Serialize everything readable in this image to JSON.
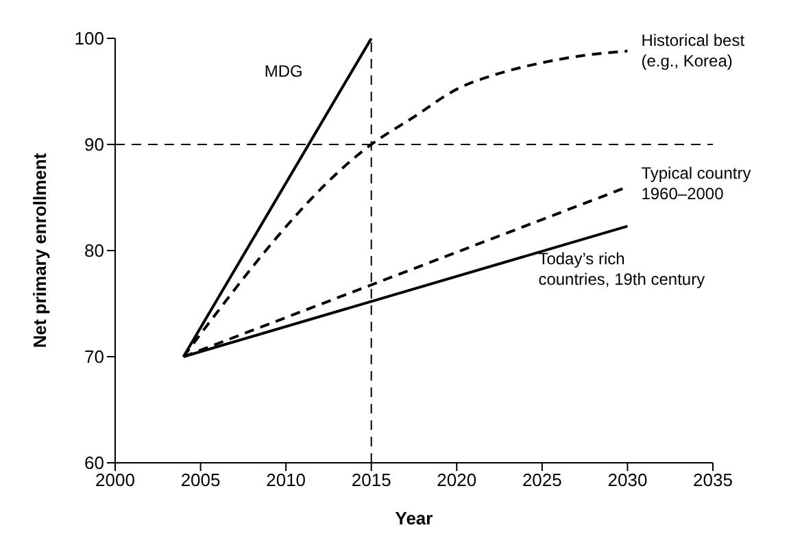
{
  "chart_data": {
    "type": "line",
    "xlabel": "Year",
    "ylabel": "Net primary enrollment",
    "xlim": [
      2000,
      2035
    ],
    "xticks": [
      2000,
      2005,
      2010,
      2015,
      2020,
      2025,
      2030,
      2035
    ],
    "ylim": [
      60,
      100
    ],
    "yticks": [
      60,
      70,
      80,
      90,
      100
    ],
    "marker": "none",
    "series": [
      {
        "name": "MDG",
        "color": "#000000",
        "line_style": "solid",
        "x": [
          2004,
          2015
        ],
        "values": [
          70,
          100
        ]
      },
      {
        "name": "Historical best\n(e.g., Korea)",
        "color": "#000000",
        "line_style": "dashed",
        "x": [
          2004,
          2015,
          2017.5,
          2020,
          2022.5,
          2025,
          2027.5,
          2030
        ],
        "values": [
          70,
          90,
          92.6,
          95.2,
          96.7,
          97.7,
          98.4,
          98.8
        ]
      },
      {
        "name": "Typical country\n1960–2000",
        "color": "#000000",
        "line_style": "dashed",
        "x": [
          2004,
          2030
        ],
        "values": [
          70,
          86
        ]
      },
      {
        "name": "Today’s rich\ncountries, 19th century",
        "color": "#000000",
        "line_style": "solid",
        "x": [
          2004,
          2030
        ],
        "values": [
          70,
          82.3
        ]
      }
    ],
    "ref_lines": [
      {
        "axis": "x",
        "value": 2015,
        "color": "#000000",
        "line_style": "dashed"
      },
      {
        "axis": "y",
        "value": 90,
        "color": "#000000",
        "line_style": "dashed"
      }
    ]
  }
}
